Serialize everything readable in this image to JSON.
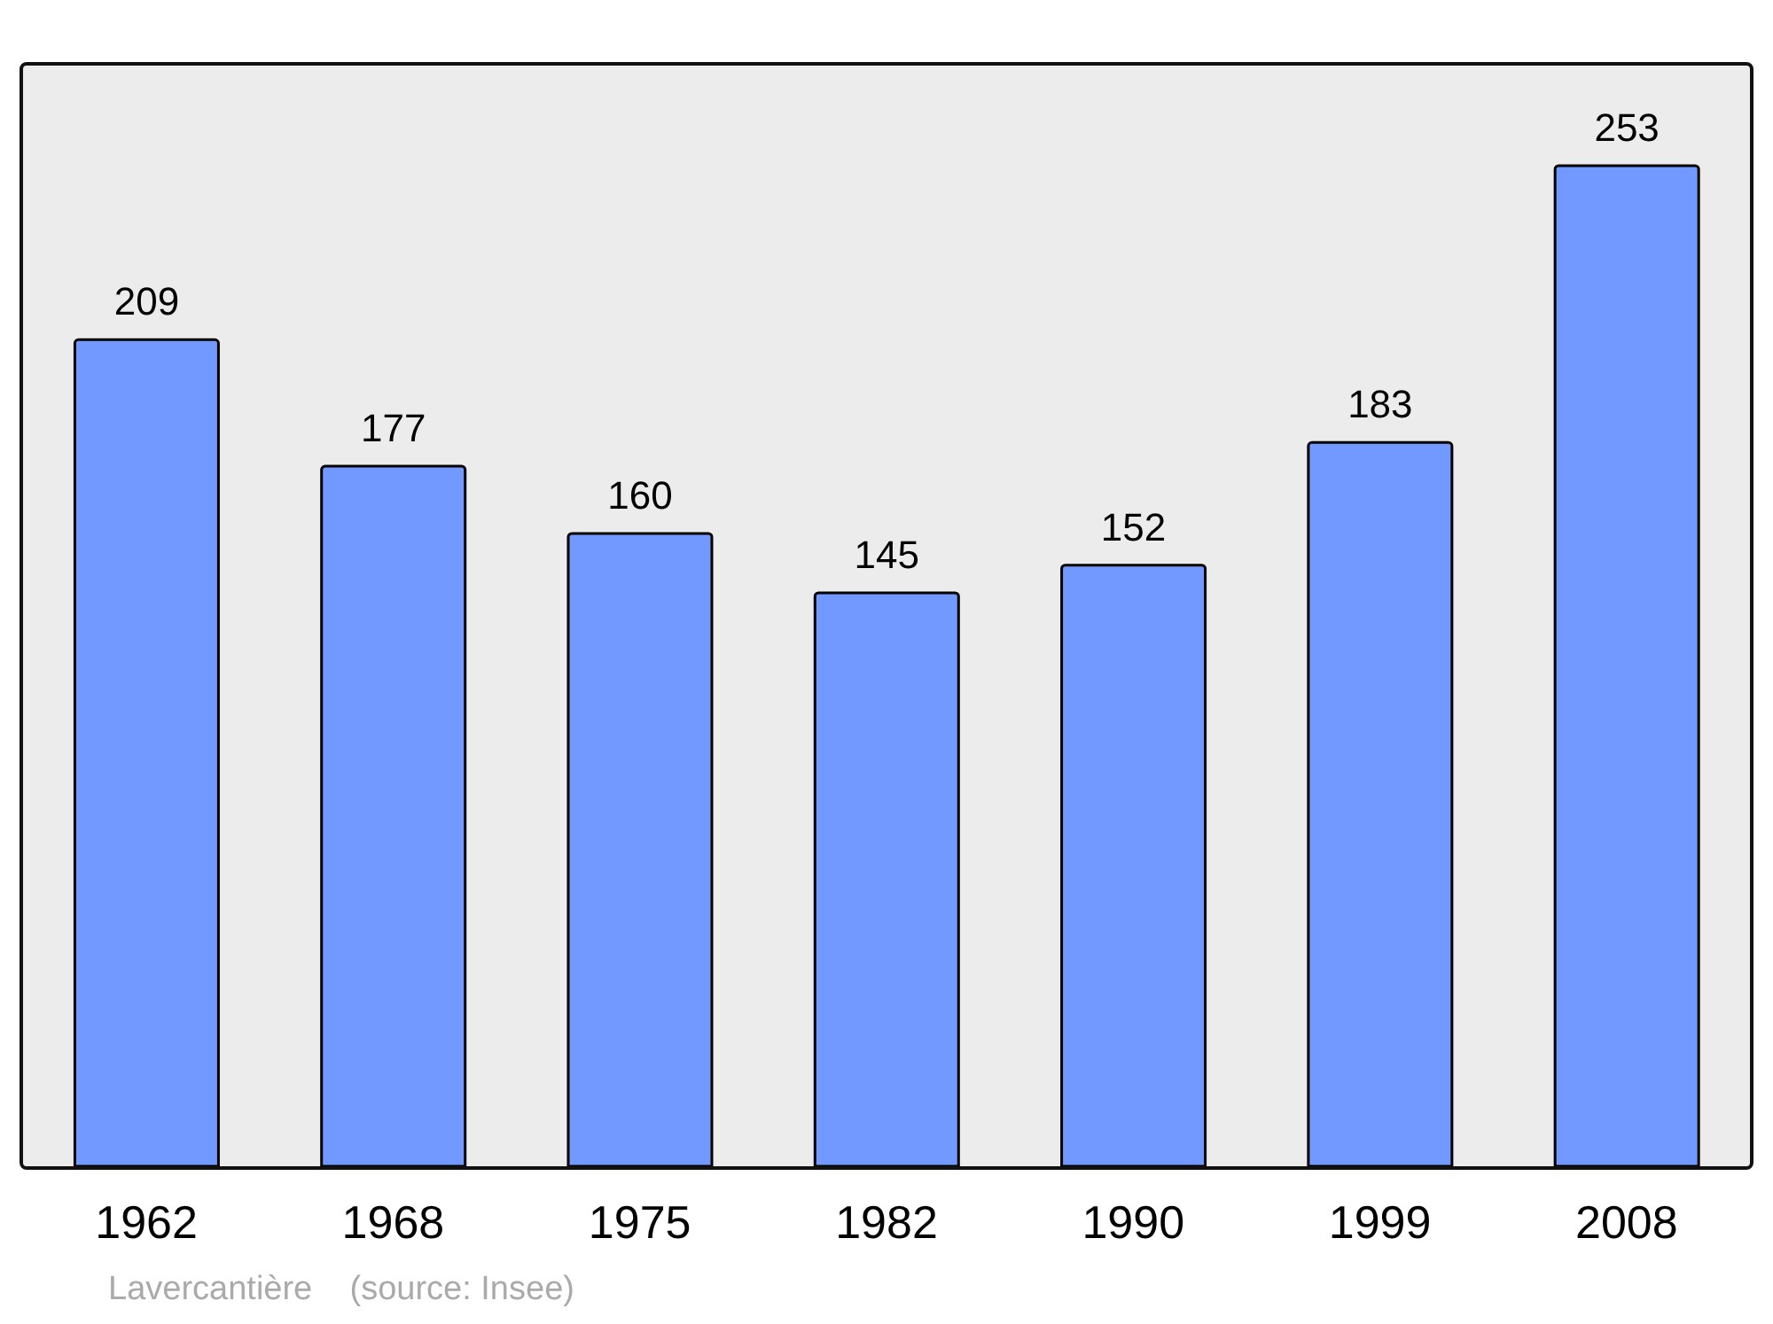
{
  "chart_data": {
    "type": "bar",
    "categories": [
      "1962",
      "1968",
      "1975",
      "1982",
      "1990",
      "1999",
      "2008"
    ],
    "values": [
      209,
      177,
      160,
      145,
      152,
      183,
      253
    ],
    "color": "#7299ff",
    "data_labels": true,
    "annotations": [
      "Lavercantière    (source: Insee)"
    ]
  }
}
